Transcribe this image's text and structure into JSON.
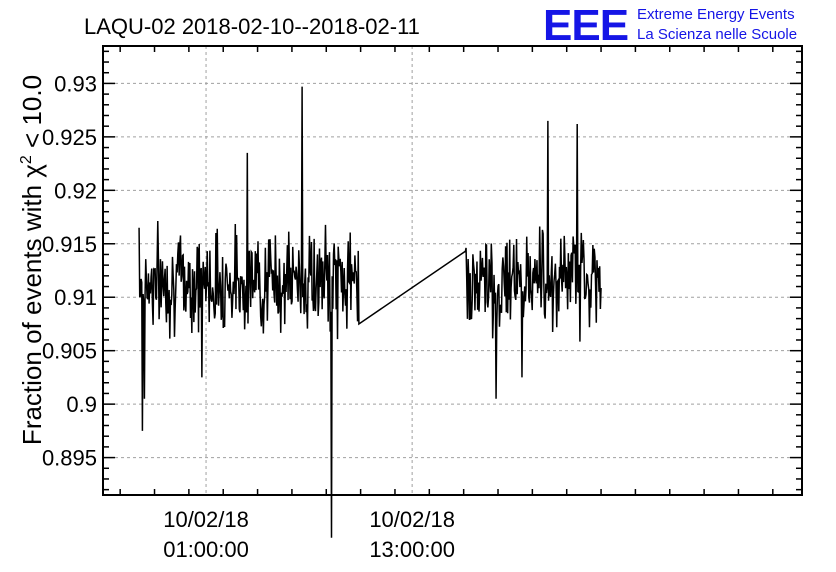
{
  "chart_data": {
    "type": "line",
    "title": "LAQU-02 2018-02-10--2018-02-11",
    "ylabel": "Fraction of events with χ² < 10.0",
    "ylabel_parts": {
      "prefix": "Fraction of events with χ",
      "sup": "2",
      "suffix": " < 10.0"
    },
    "xlabel": "",
    "x_unit": "hours since 2018-02-10 00:00",
    "xlim": [
      -5,
      35.7
    ],
    "ylim": [
      0.8915,
      0.9335
    ],
    "grid": true,
    "yticks": [
      {
        "value": 0.895,
        "label": "0.895"
      },
      {
        "value": 0.9,
        "label": "0.9"
      },
      {
        "value": 0.905,
        "label": "0.905"
      },
      {
        "value": 0.91,
        "label": "0.91"
      },
      {
        "value": 0.915,
        "label": "0.915"
      },
      {
        "value": 0.92,
        "label": "0.92"
      },
      {
        "value": 0.925,
        "label": "0.925"
      },
      {
        "value": 0.93,
        "label": "0.93"
      }
    ],
    "xticks": [
      {
        "value": 1,
        "line1": "10/02/18",
        "line2": "01:00:00"
      },
      {
        "value": 13,
        "line1": "10/02/18",
        "line2": "13:00:00"
      }
    ],
    "segments": [
      {
        "name": "",
        "x_start": -2.9,
        "x_end": 9.9,
        "n": 330,
        "mean": 0.9115,
        "noise": 0.0048,
        "seed": 7,
        "points": [
          [
            -2.9,
            0.9165
          ],
          [
            -2.72,
            0.8975
          ],
          [
            -2.6,
            0.9005
          ],
          [
            0.75,
            0.9025
          ],
          [
            3.4,
            0.9235
          ],
          [
            6.6,
            0.9297
          ],
          [
            8.3,
            0.8875
          ],
          [
            9.9,
            0.9075
          ]
        ]
      },
      {
        "name": "",
        "x_start": 16.1,
        "x_end": 24.0,
        "n": 200,
        "mean": 0.9115,
        "noise": 0.0048,
        "seed": 13,
        "points": [
          [
            16.1,
            0.9143
          ],
          [
            16.4,
            0.908
          ],
          [
            17.9,
            0.9005
          ],
          [
            19.4,
            0.9025
          ],
          [
            20.9,
            0.9265
          ],
          [
            22.6,
            0.9262
          ],
          [
            23.9,
            0.9105
          ]
        ]
      }
    ]
  },
  "logo": {
    "letters": "EEE",
    "line1": "Extreme Energy Events",
    "line2": "La Scienza nelle Scuole"
  },
  "colors": {
    "line": "#000000",
    "grid": "#a0a0a0",
    "logo": "#1515e6"
  }
}
